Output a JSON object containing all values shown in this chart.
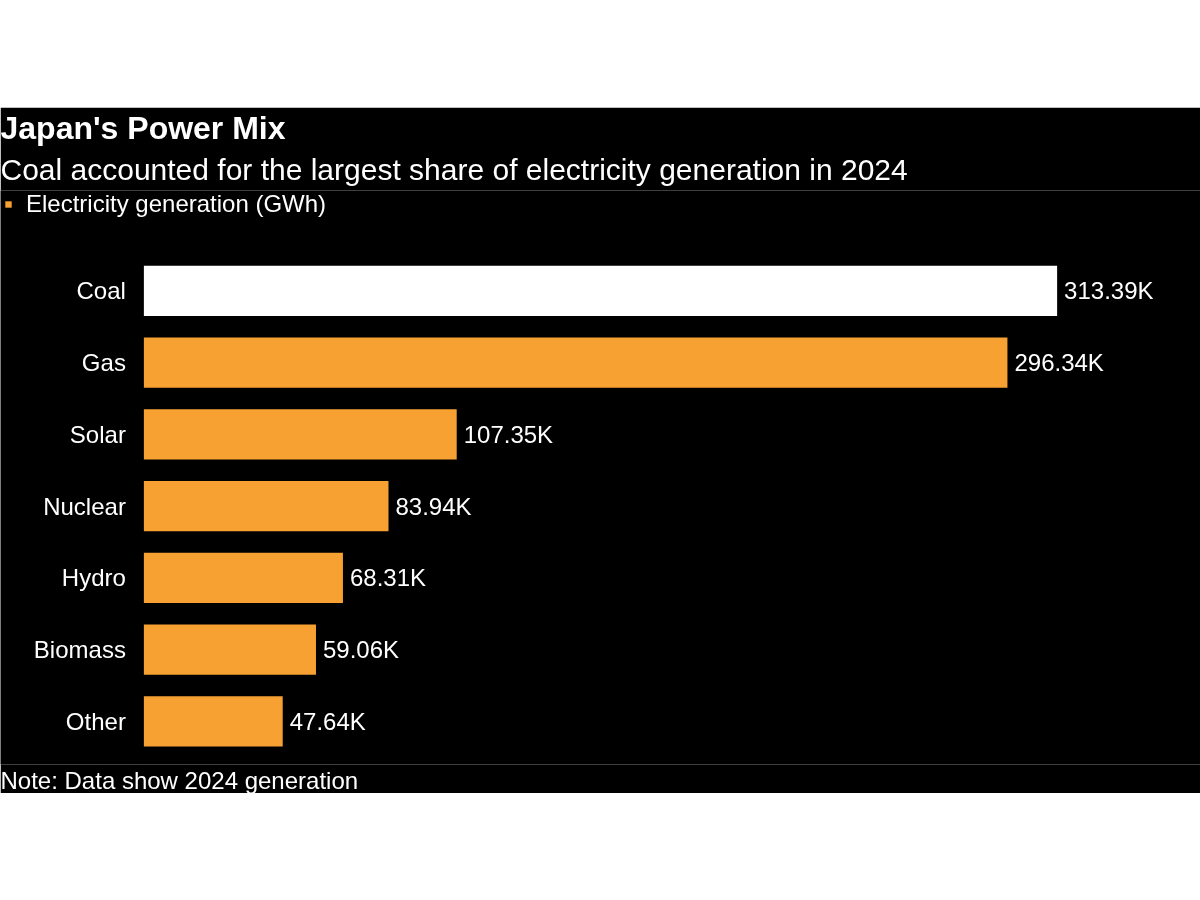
{
  "chart_data": {
    "type": "bar",
    "orientation": "horizontal",
    "title": "Japan's Power Mix",
    "subtitle": "Coal accounted for the largest share of electricity generation in 2024",
    "categories": [
      "Coal",
      "Gas",
      "Solar",
      "Nuclear",
      "Hydro",
      "Biomass",
      "Other"
    ],
    "series": [
      {
        "name": "Electricity generation (GWh)",
        "color": "#f7a132",
        "colors": [
          "#ffffff",
          "#f7a132",
          "#f7a132",
          "#f7a132",
          "#f7a132",
          "#f7a132",
          "#f7a132"
        ],
        "values": [
          313390,
          296340,
          107350,
          83940,
          68310,
          59060,
          47640
        ],
        "value_labels": [
          "313.39K",
          "296.34K",
          "107.35K",
          "83.94K",
          "68.31K",
          "59.06K",
          "47.64K"
        ]
      }
    ],
    "legend": "top left",
    "grid": false,
    "tick_labels": "y",
    "annotations": [
      "Note: Data show 2024 generation"
    ]
  }
}
